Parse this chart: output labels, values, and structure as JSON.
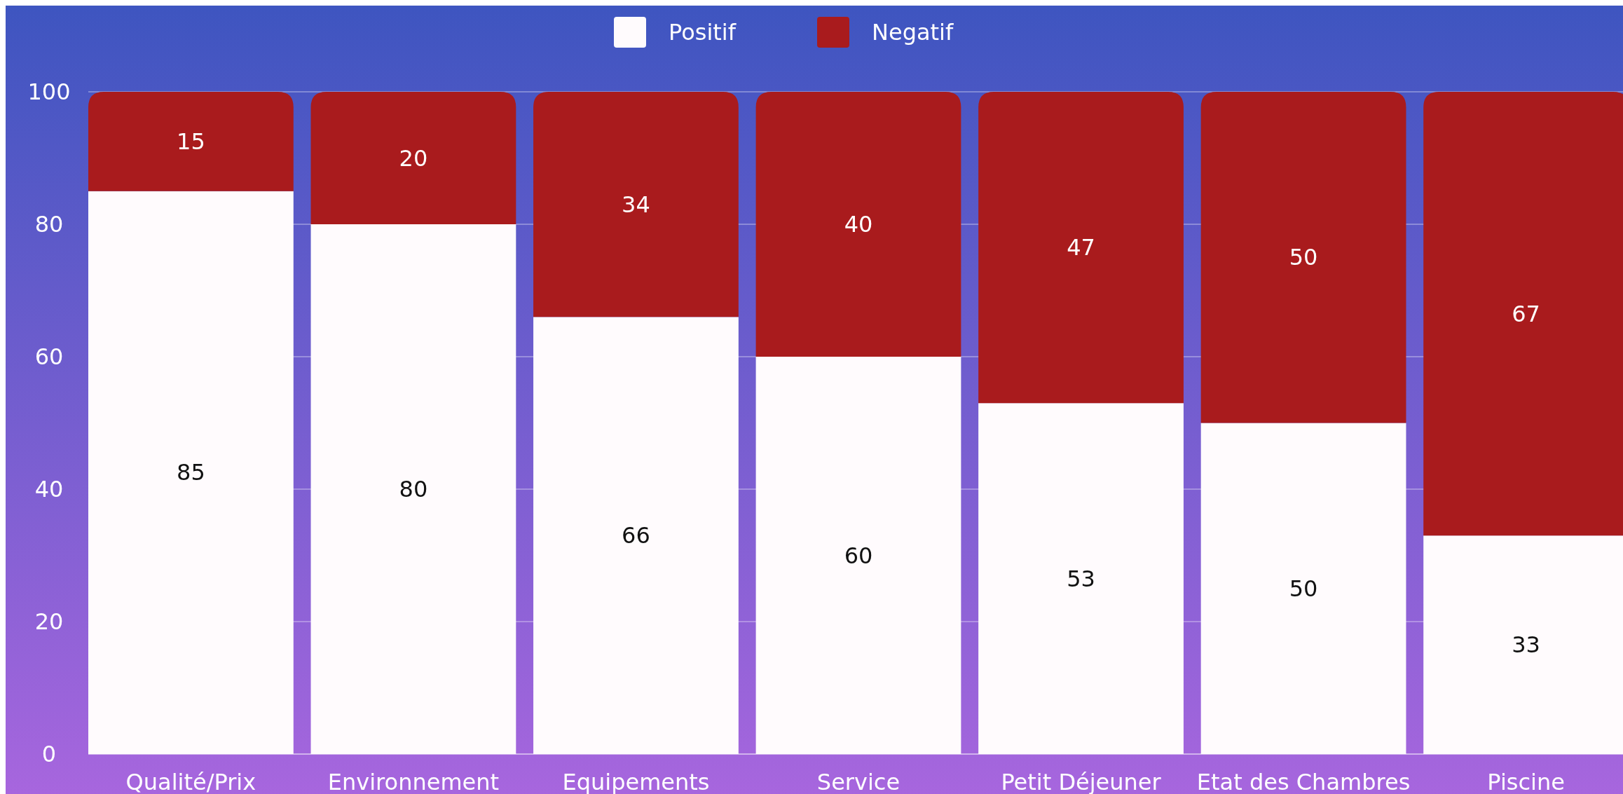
{
  "chart_data": {
    "type": "bar",
    "stacked": true,
    "categories": [
      "Qualité/Prix",
      "Environnement",
      "Equipements",
      "Service",
      "Petit Déjeuner",
      "Etat des Chambres",
      "Piscine"
    ],
    "series": [
      {
        "name": "Positif",
        "color": "#fffbfd",
        "values": [
          85,
          80,
          66,
          60,
          53,
          50,
          33
        ]
      },
      {
        "name": "Negatif",
        "color": "#a91b1d",
        "values": [
          15,
          20,
          34,
          40,
          47,
          50,
          67
        ]
      }
    ],
    "ylim": [
      0,
      100
    ],
    "yticks": [
      0,
      20,
      40,
      60,
      80,
      100
    ],
    "grid": "y",
    "legend": "top",
    "data_labels": true
  }
}
